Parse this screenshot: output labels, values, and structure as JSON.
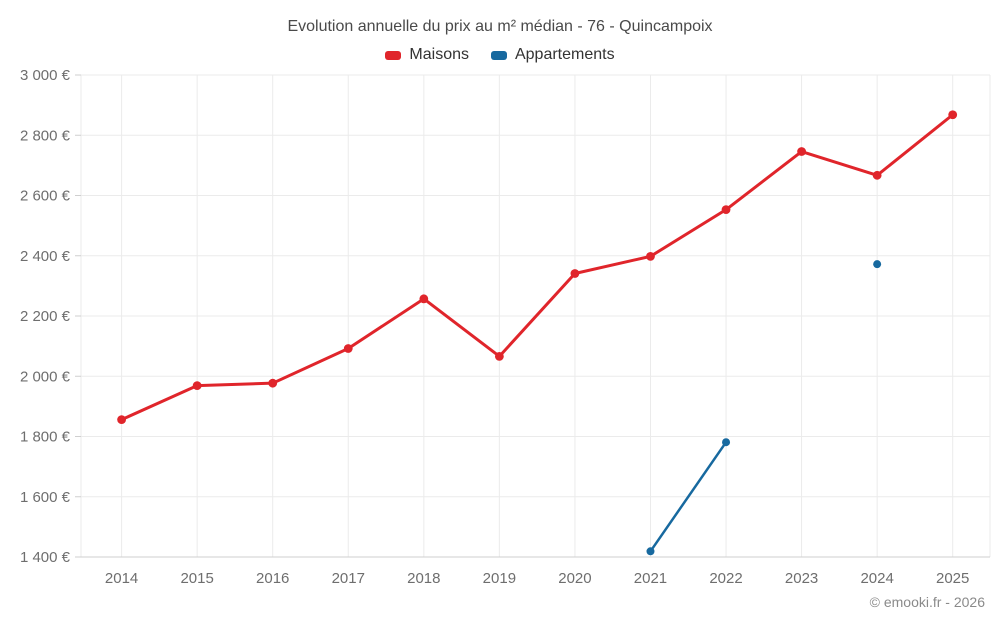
{
  "chart_data": {
    "type": "line",
    "title": "Evolution annuelle du prix au m² médian - 76 - Quincampoix",
    "x": [
      "2014",
      "2015",
      "2016",
      "2017",
      "2018",
      "2019",
      "2020",
      "2021",
      "2022",
      "2023",
      "2024",
      "2025"
    ],
    "series": [
      {
        "name": "Maisons",
        "color": "#e0252b",
        "line_width": 3,
        "marker_radius": 4.4,
        "values": [
          1856,
          1969,
          1977,
          2092,
          2257,
          2066,
          2341,
          2398,
          2553,
          2746,
          2667,
          2868
        ]
      },
      {
        "name": "Appartements",
        "color": "#17699f",
        "line_width": 2.5,
        "marker_radius": 4,
        "values": [
          null,
          null,
          null,
          null,
          null,
          null,
          null,
          1419,
          1781,
          null,
          2372,
          null
        ]
      }
    ],
    "ylim": [
      1400,
      3000
    ],
    "ytick_step": 200,
    "y_unit": "€",
    "grid": true,
    "legend_position": "top"
  },
  "colors": {
    "gridline": "#ebebeb",
    "axis_line": "#cfcfcf",
    "axis_label": "#6e6e6e",
    "title": "#4a4a4a",
    "legend_text": "#333333",
    "background": "#ffffff"
  },
  "copyright": "© emooki.fr - 2026"
}
